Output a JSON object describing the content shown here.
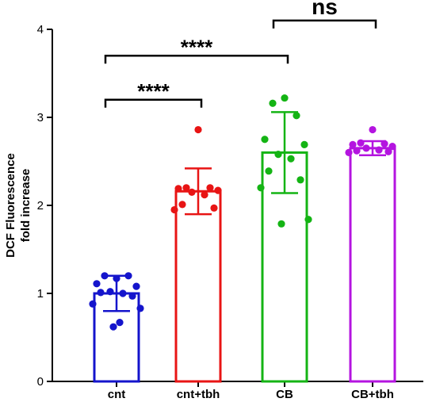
{
  "chart_data": {
    "type": "bar",
    "ylabel_lines": [
      "DCF Fluorescence",
      "fold increase"
    ],
    "ylim": [
      0,
      4
    ],
    "yticks": [
      0,
      1,
      2,
      3,
      4
    ],
    "categories": [
      "cnt",
      "cnt+tbh",
      "CB",
      "CB+tbh"
    ],
    "means": [
      1.0,
      2.16,
      2.6,
      2.65
    ],
    "sd": [
      0.2,
      0.26,
      0.46,
      0.08
    ],
    "colors": [
      "#1414cc",
      "#e81414",
      "#14b414",
      "#b414e0"
    ],
    "points": [
      [
        1.17,
        1.2,
        1.2,
        1.11,
        1.08,
        1.02,
        1.0,
        1.01,
        0.97,
        0.88,
        0.83,
        0.62,
        0.67
      ],
      [
        2.86,
        2.2,
        2.2,
        2.19,
        2.17,
        2.15,
        2.12,
        2.01,
        1.97,
        1.95
      ],
      [
        3.22,
        3.16,
        3.02,
        2.75,
        2.69,
        2.58,
        2.53,
        2.39,
        2.29,
        2.2,
        1.84,
        1.79
      ],
      [
        2.86,
        2.71,
        2.7,
        2.69,
        2.67,
        2.65,
        2.63,
        2.62,
        2.61,
        2.6
      ]
    ],
    "comparisons": [
      {
        "from": 0,
        "to": 1,
        "label": "****",
        "y": 3.2
      },
      {
        "from": 0,
        "to": 2,
        "label": "****",
        "y": 3.7
      },
      {
        "from": 2,
        "to": 3,
        "label": "ns",
        "y": 4.1
      }
    ]
  }
}
